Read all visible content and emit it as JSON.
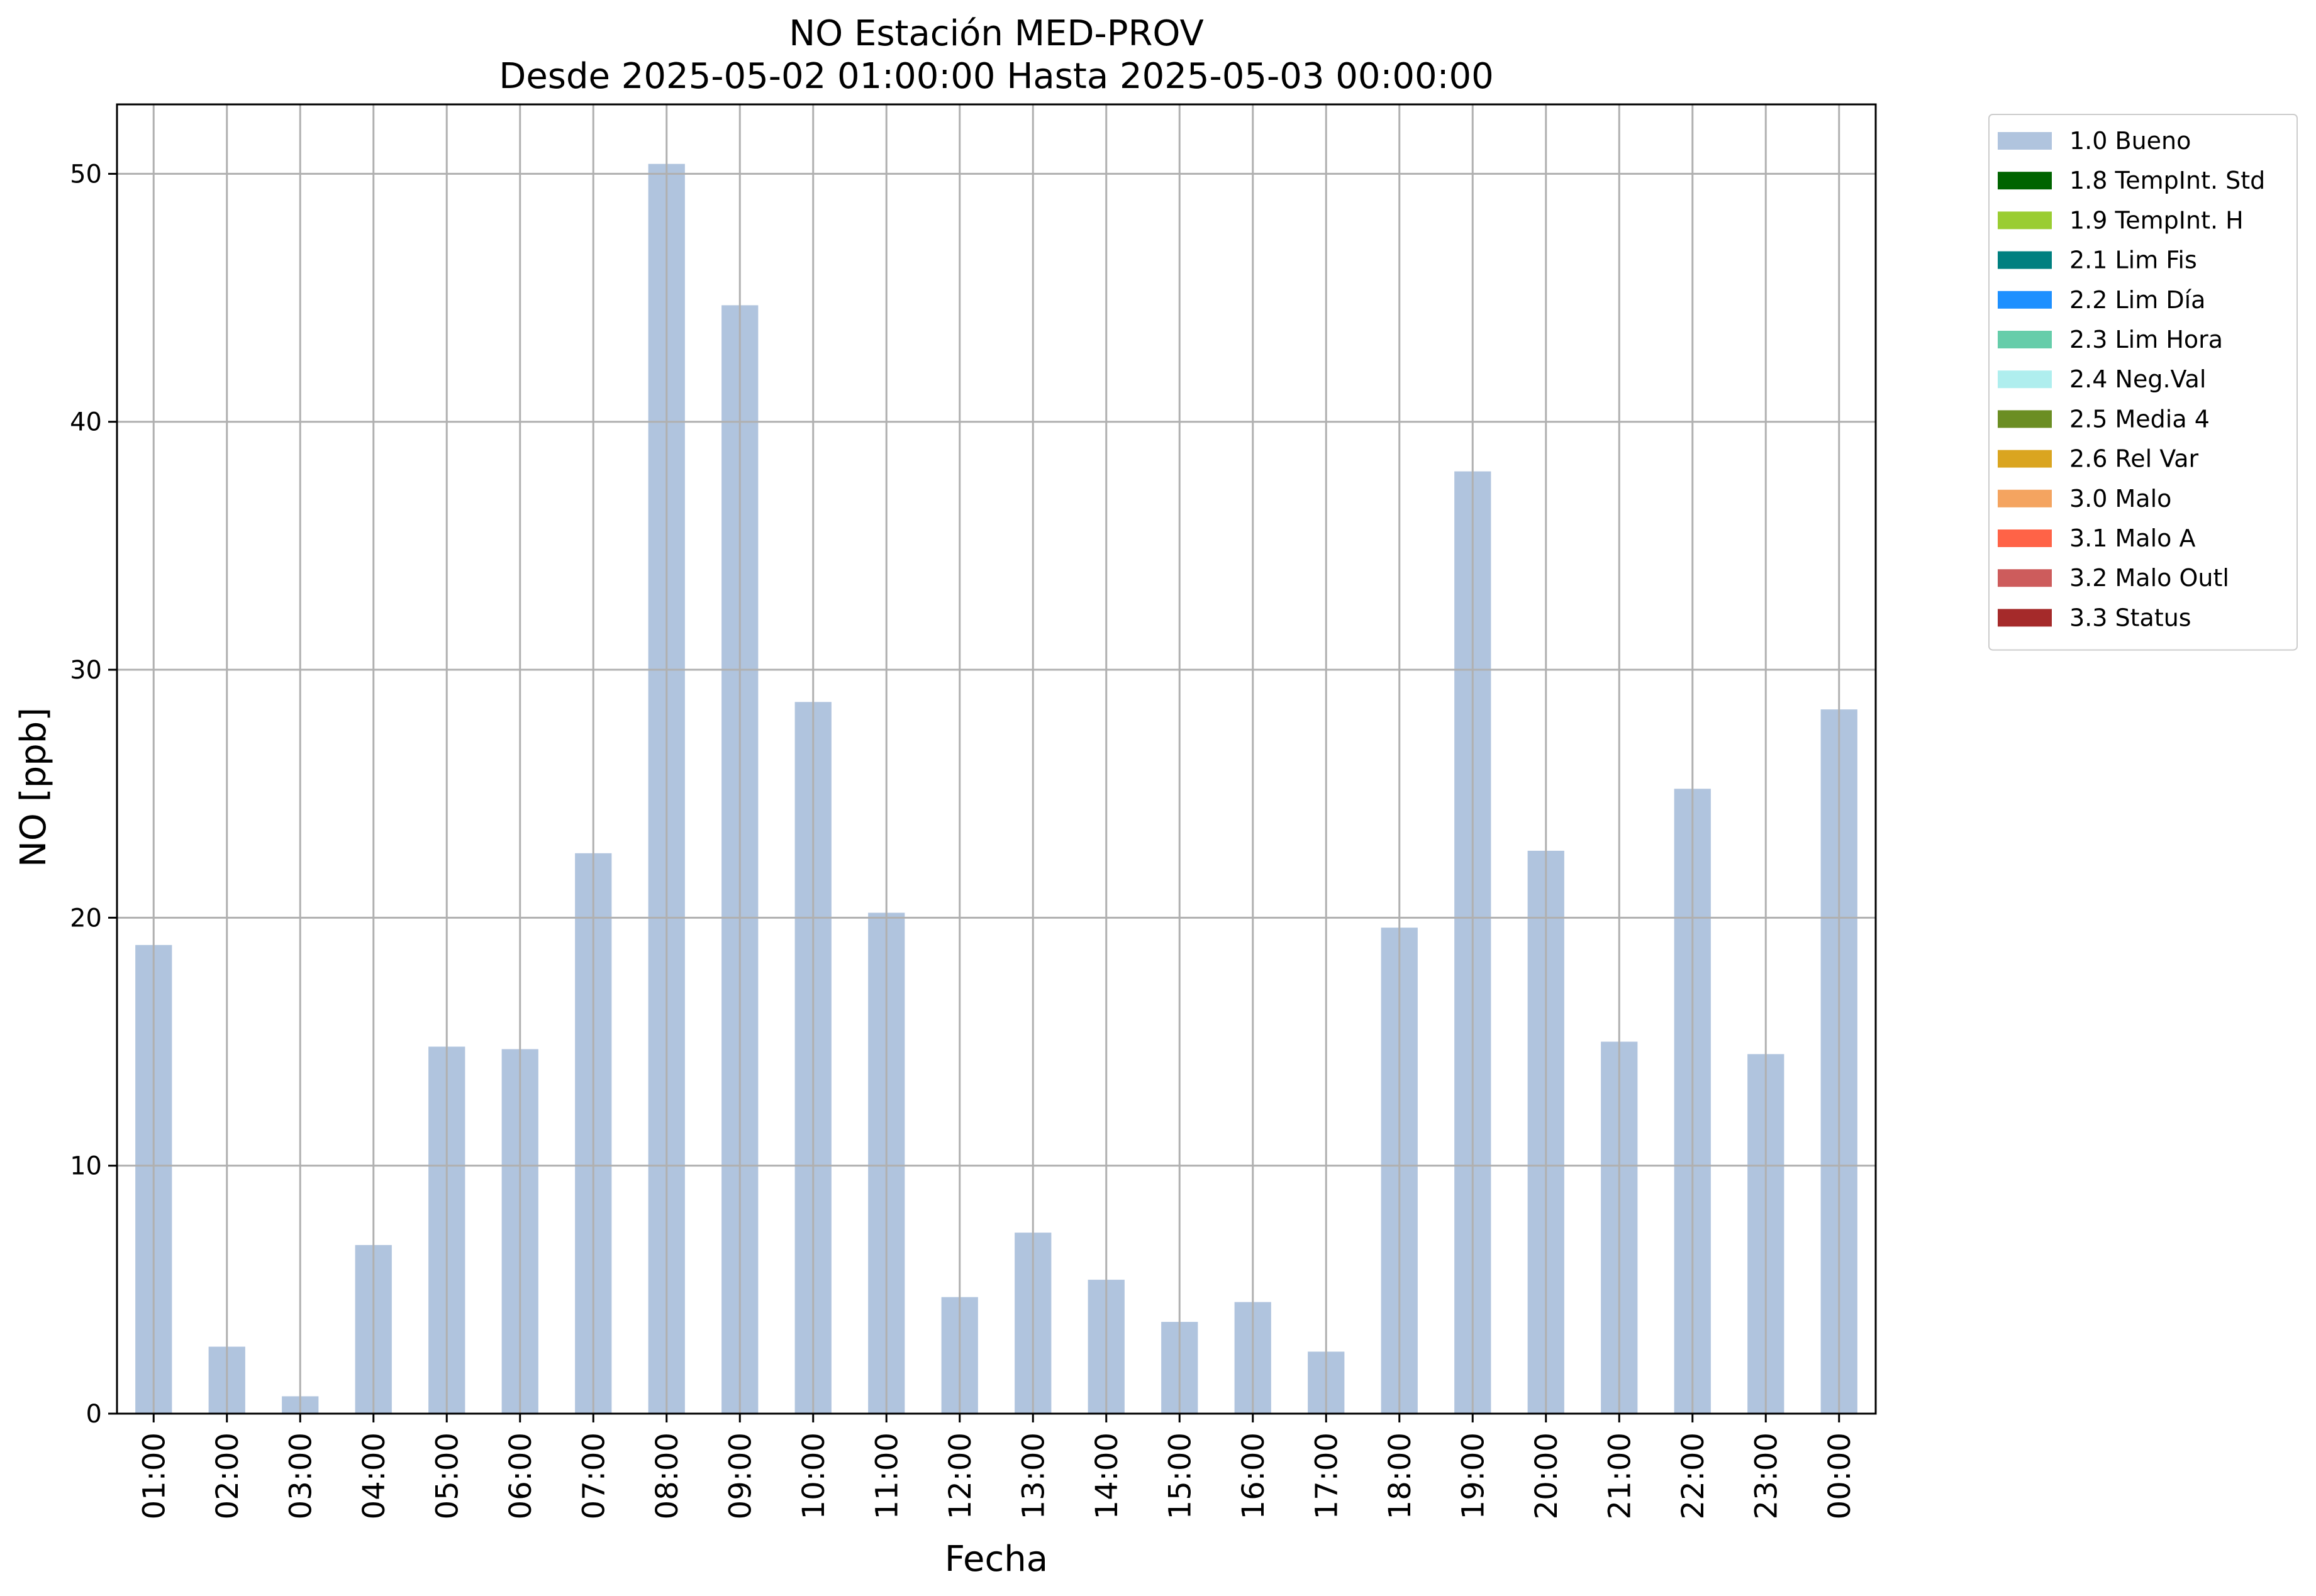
{
  "chart_data": {
    "type": "bar",
    "title": "NO Estación MED-PROV",
    "subtitle": "Desde 2025-05-02 01:00:00 Hasta 2025-05-03 00:00:00",
    "xlabel": "Fecha",
    "ylabel": "NO [ppb]",
    "ylim": [
      0,
      52.8
    ],
    "yticks": [
      0,
      10,
      20,
      30,
      40,
      50
    ],
    "grid": true,
    "legend_position": "outside-top-right",
    "categories": [
      "01:00",
      "02:00",
      "03:00",
      "04:00",
      "05:00",
      "06:00",
      "07:00",
      "08:00",
      "09:00",
      "10:00",
      "11:00",
      "12:00",
      "13:00",
      "14:00",
      "15:00",
      "16:00",
      "17:00",
      "18:00",
      "19:00",
      "20:00",
      "21:00",
      "22:00",
      "23:00",
      "00:00"
    ],
    "series": [
      {
        "name": "1.0 Bueno",
        "color": "#b0c4de",
        "values": [
          18.9,
          2.7,
          0.7,
          6.8,
          14.8,
          14.7,
          22.6,
          50.4,
          44.7,
          28.7,
          20.2,
          4.7,
          7.3,
          5.4,
          3.7,
          4.5,
          2.5,
          19.6,
          38.0,
          22.7,
          15.0,
          25.2,
          14.5,
          28.4
        ]
      }
    ],
    "legend": [
      {
        "label": "1.0 Bueno",
        "color": "#b0c4de"
      },
      {
        "label": "1.8 TempInt. Std",
        "color": "#006400"
      },
      {
        "label": "1.9 TempInt. H",
        "color": "#9acd32"
      },
      {
        "label": "2.1 Lim Fis",
        "color": "#008080"
      },
      {
        "label": "2.2 Lim Día",
        "color": "#1e90ff"
      },
      {
        "label": "2.3 Lim Hora",
        "color": "#66cdaa"
      },
      {
        "label": "2.4 Neg.Val",
        "color": "#afeeee"
      },
      {
        "label": "2.5 Media 4",
        "color": "#6b8e23"
      },
      {
        "label": "2.6 Rel Var",
        "color": "#daa520"
      },
      {
        "label": "3.0 Malo",
        "color": "#f4a460"
      },
      {
        "label": "3.1 Malo A",
        "color": "#ff6347"
      },
      {
        "label": "3.2 Malo Outl",
        "color": "#cd5c5c"
      },
      {
        "label": "3.3 Status",
        "color": "#a52a2a"
      }
    ]
  }
}
